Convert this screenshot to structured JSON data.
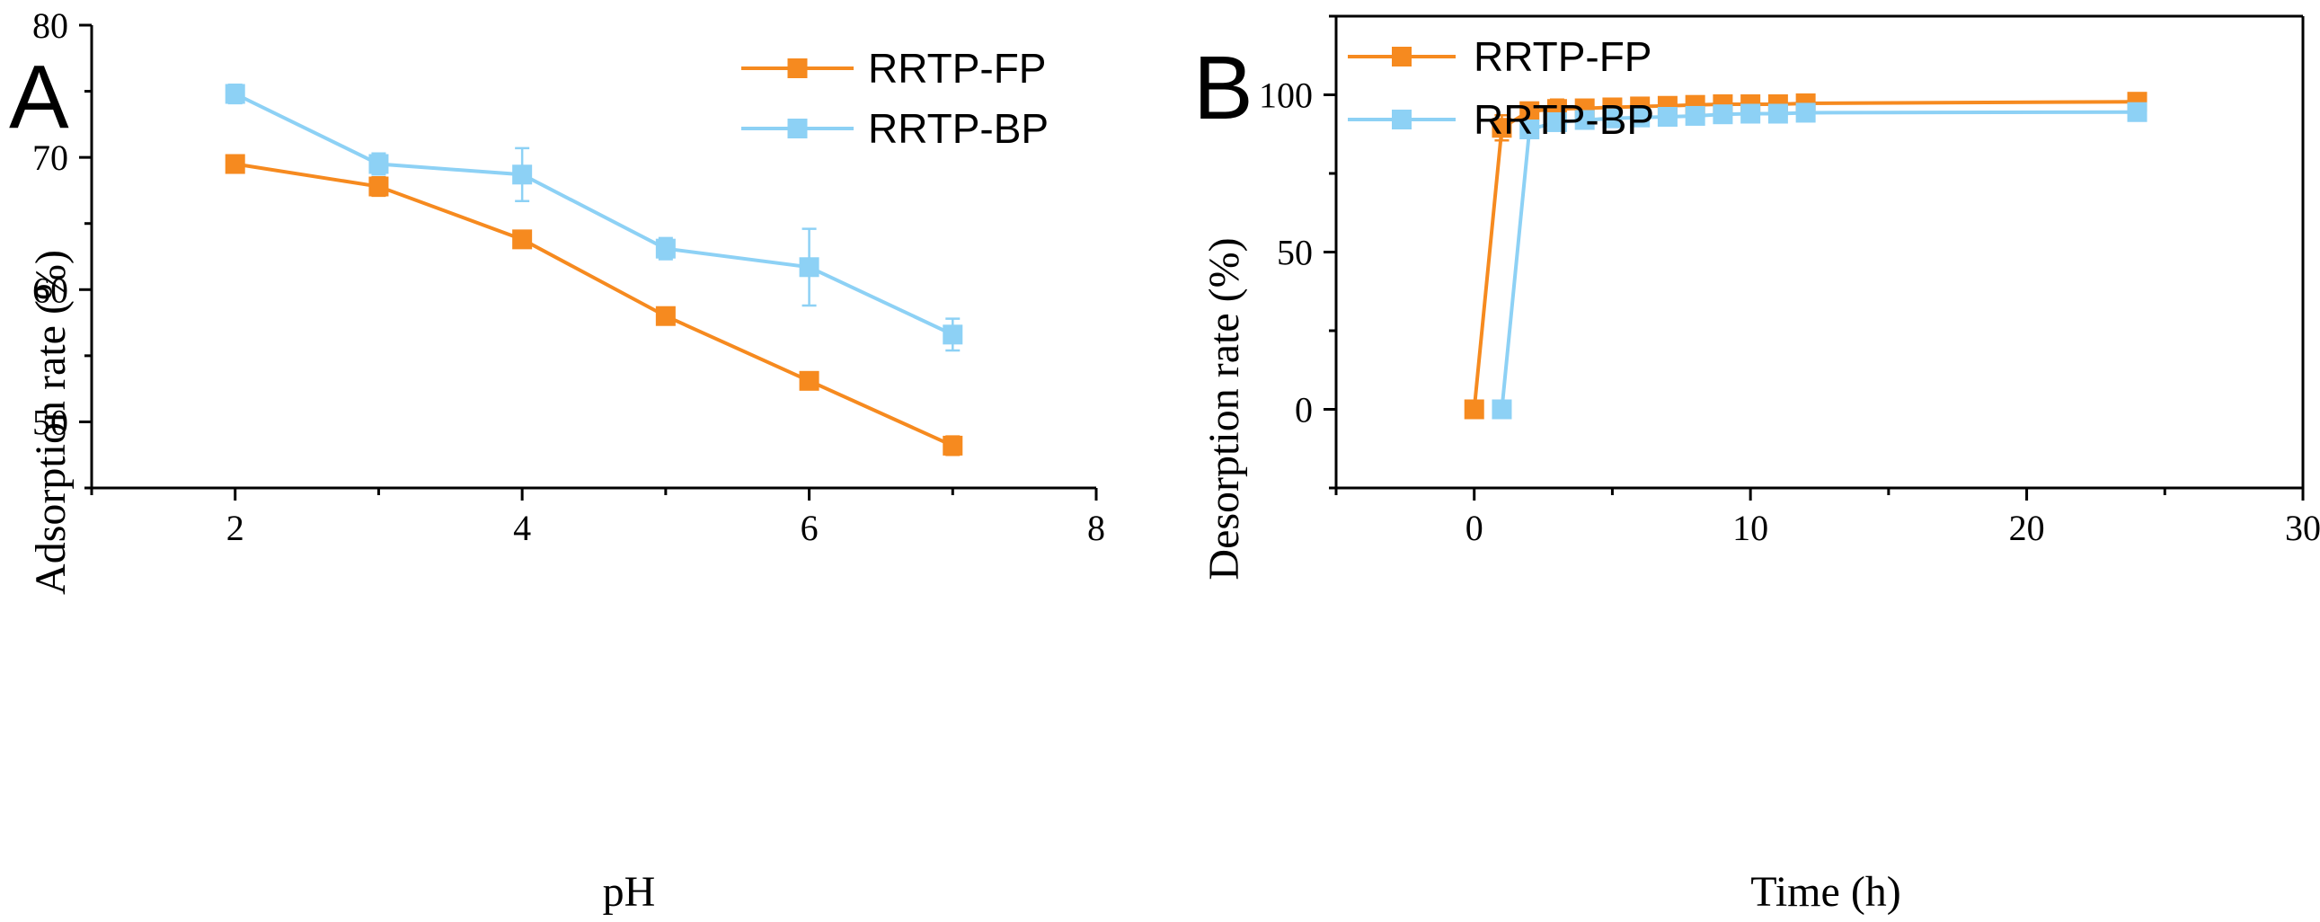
{
  "colors": {
    "fp": "#F68A1F",
    "bp": "#8DD1F5"
  },
  "chart_data": [
    {
      "type": "line",
      "panel_label": "A",
      "xlabel": "pH",
      "ylabel": "Adsorption rate (%)",
      "xlim": [
        1,
        8
      ],
      "ylim": [
        45,
        80
      ],
      "xticks": [
        2,
        4,
        6,
        8
      ],
      "yticks": [
        50,
        60,
        70,
        80
      ],
      "legend_position": "top-right",
      "series": [
        {
          "name": "RRTP-FP",
          "color_key": "fp",
          "x": [
            2,
            3,
            4,
            5,
            6,
            7
          ],
          "y": [
            69.5,
            67.8,
            63.8,
            58.0,
            53.1,
            48.2
          ],
          "err": [
            0.3,
            0.7,
            0.3,
            0.3,
            0.3,
            0.7
          ]
        },
        {
          "name": "RRTP-BP",
          "color_key": "bp",
          "x": [
            2,
            3,
            4,
            5,
            6,
            7
          ],
          "y": [
            74.8,
            69.5,
            68.7,
            63.1,
            61.7,
            56.6
          ],
          "err": [
            0.7,
            0.8,
            2.0,
            0.8,
            2.9,
            1.2
          ]
        }
      ]
    },
    {
      "type": "line",
      "panel_label": "B",
      "xlabel": "Time (h)",
      "ylabel": "Desorption rate (%)",
      "xlim": [
        -5,
        30
      ],
      "ylim": [
        -25,
        125
      ],
      "xticks": [
        0,
        10,
        20,
        30
      ],
      "yticks": [
        0,
        50,
        100
      ],
      "legend_position": "top-left",
      "series": [
        {
          "name": "RRTP-FP",
          "color_key": "fp",
          "x": [
            0,
            1,
            2,
            3,
            4,
            5,
            6,
            7,
            8,
            9,
            10,
            11,
            12,
            24
          ],
          "y": [
            0,
            89.5,
            94.8,
            95.5,
            95.7,
            96.0,
            96.3,
            96.5,
            96.8,
            97.0,
            97.0,
            97.0,
            97.3,
            97.8
          ],
          "err": [
            0,
            4.0,
            2.0,
            3.0,
            2.0,
            1.5,
            2.0,
            2.5,
            1.5,
            1.5,
            2.5,
            2.0,
            1.0,
            1.0
          ]
        },
        {
          "name": "RRTP-BP",
          "color_key": "bp",
          "x": [
            1,
            2,
            3,
            4,
            5,
            6,
            7,
            8,
            9,
            10,
            11,
            12,
            24
          ],
          "y": [
            0,
            89.0,
            91.3,
            92.0,
            92.5,
            92.8,
            93.0,
            93.3,
            93.8,
            94.0,
            94.0,
            94.3,
            94.5
          ],
          "err": [
            0,
            2.0,
            2.0,
            2.0,
            1.5,
            1.5,
            1.5,
            2.0,
            1.0,
            1.5,
            1.5,
            1.0,
            1.0
          ]
        }
      ]
    }
  ]
}
